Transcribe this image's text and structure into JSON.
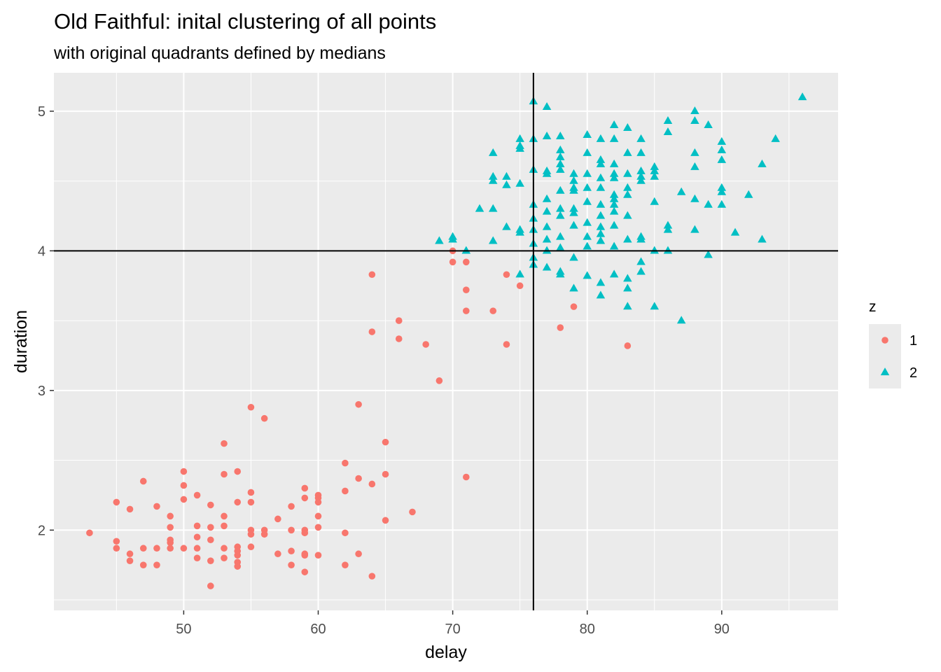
{
  "chart_data": {
    "type": "scatter",
    "title": "Old Faithful: inital clustering of all points",
    "subtitle": "with original quadrants defined by medians",
    "xlabel": "delay",
    "ylabel": "duration",
    "xlim": [
      40.35,
      98.65
    ],
    "ylim": [
      1.425,
      5.275
    ],
    "x_ticks": [
      50,
      60,
      70,
      80,
      90
    ],
    "y_ticks": [
      2,
      3,
      4,
      5
    ],
    "reference_lines": {
      "x": 76,
      "y": 4
    },
    "grid": true,
    "legend": {
      "title": "z",
      "position": "right"
    },
    "series": [
      {
        "name": "1",
        "shape": "circle",
        "color": "#F8766D",
        "points": [
          [
            43,
            1.98
          ],
          [
            45,
            2.2
          ],
          [
            45,
            1.92
          ],
          [
            45,
            1.87
          ],
          [
            46,
            2.15
          ],
          [
            46,
            1.83
          ],
          [
            46,
            1.78
          ],
          [
            47,
            2.35
          ],
          [
            47,
            1.87
          ],
          [
            47,
            1.75
          ],
          [
            48,
            2.17
          ],
          [
            48,
            1.87
          ],
          [
            48,
            1.75
          ],
          [
            49,
            2.1
          ],
          [
            49,
            2.02
          ],
          [
            49,
            1.93
          ],
          [
            49,
            1.91
          ],
          [
            49,
            1.87
          ],
          [
            50,
            2.42
          ],
          [
            50,
            2.32
          ],
          [
            50,
            2.22
          ],
          [
            50,
            1.87
          ],
          [
            51,
            2.25
          ],
          [
            51,
            2.03
          ],
          [
            51,
            1.95
          ],
          [
            51,
            1.87
          ],
          [
            51,
            1.8
          ],
          [
            52,
            2.18
          ],
          [
            52,
            2.02
          ],
          [
            52,
            1.93
          ],
          [
            52,
            1.78
          ],
          [
            52,
            1.6
          ],
          [
            53,
            2.62
          ],
          [
            53,
            2.4
          ],
          [
            53,
            2.1
          ],
          [
            53,
            2.03
          ],
          [
            53,
            1.87
          ],
          [
            53,
            1.8
          ],
          [
            54,
            2.42
          ],
          [
            54,
            2.2
          ],
          [
            54,
            1.88
          ],
          [
            54,
            1.85
          ],
          [
            54,
            1.82
          ],
          [
            54,
            1.77
          ],
          [
            54,
            1.74
          ],
          [
            55,
            2.88
          ],
          [
            55,
            2.27
          ],
          [
            55,
            2.2
          ],
          [
            55,
            2.0
          ],
          [
            55,
            1.97
          ],
          [
            55,
            1.88
          ],
          [
            56,
            2.8
          ],
          [
            56,
            2.0
          ],
          [
            56,
            1.97
          ],
          [
            57,
            2.08
          ],
          [
            57,
            1.83
          ],
          [
            58,
            2.17
          ],
          [
            58,
            2.0
          ],
          [
            58,
            1.85
          ],
          [
            58,
            1.75
          ],
          [
            59,
            2.3
          ],
          [
            59,
            2.23
          ],
          [
            59,
            2.0
          ],
          [
            59,
            1.98
          ],
          [
            59,
            1.83
          ],
          [
            59,
            1.82
          ],
          [
            59,
            1.7
          ],
          [
            60,
            2.25
          ],
          [
            60,
            2.23
          ],
          [
            60,
            2.2
          ],
          [
            60,
            2.1
          ],
          [
            60,
            2.02
          ],
          [
            60,
            1.82
          ],
          [
            62,
            2.48
          ],
          [
            62,
            2.28
          ],
          [
            62,
            1.98
          ],
          [
            62,
            1.75
          ],
          [
            63,
            2.9
          ],
          [
            63,
            2.37
          ],
          [
            63,
            1.83
          ],
          [
            64,
            3.83
          ],
          [
            64,
            3.42
          ],
          [
            64,
            2.33
          ],
          [
            64,
            1.67
          ],
          [
            65,
            2.63
          ],
          [
            65,
            2.4
          ],
          [
            65,
            2.07
          ],
          [
            66,
            3.5
          ],
          [
            66,
            3.37
          ],
          [
            67,
            2.13
          ],
          [
            68,
            3.33
          ],
          [
            69,
            3.07
          ],
          [
            70,
            4.0
          ],
          [
            70,
            3.92
          ],
          [
            71,
            3.92
          ],
          [
            71,
            3.72
          ],
          [
            71,
            3.57
          ],
          [
            71,
            2.38
          ],
          [
            73,
            3.57
          ],
          [
            74,
            3.83
          ],
          [
            74,
            3.33
          ],
          [
            75,
            3.75
          ],
          [
            78,
            3.45
          ],
          [
            79,
            3.6
          ],
          [
            83,
            3.32
          ]
        ]
      },
      {
        "name": "2",
        "shape": "triangle",
        "color": "#00BFC4",
        "points": [
          [
            69,
            4.07
          ],
          [
            70,
            4.1
          ],
          [
            70,
            4.08
          ],
          [
            71,
            4.0
          ],
          [
            72,
            4.3
          ],
          [
            73,
            4.7
          ],
          [
            73,
            4.53
          ],
          [
            73,
            4.5
          ],
          [
            73,
            4.3
          ],
          [
            73,
            4.07
          ],
          [
            74,
            4.53
          ],
          [
            74,
            4.47
          ],
          [
            74,
            4.17
          ],
          [
            75,
            4.8
          ],
          [
            75,
            4.75
          ],
          [
            75,
            4.73
          ],
          [
            75,
            4.48
          ],
          [
            75,
            4.15
          ],
          [
            75,
            4.13
          ],
          [
            75,
            3.83
          ],
          [
            76,
            5.07
          ],
          [
            76,
            4.8
          ],
          [
            76,
            4.58
          ],
          [
            76,
            4.33
          ],
          [
            76,
            4.23
          ],
          [
            76,
            4.15
          ],
          [
            76,
            4.05
          ],
          [
            76,
            3.95
          ],
          [
            76,
            3.9
          ],
          [
            77,
            5.03
          ],
          [
            77,
            4.82
          ],
          [
            77,
            4.57
          ],
          [
            77,
            4.55
          ],
          [
            77,
            4.37
          ],
          [
            77,
            4.28
          ],
          [
            77,
            4.17
          ],
          [
            77,
            4.08
          ],
          [
            77,
            4.0
          ],
          [
            77,
            3.88
          ],
          [
            78,
            4.82
          ],
          [
            78,
            4.72
          ],
          [
            78,
            4.67
          ],
          [
            78,
            4.62
          ],
          [
            78,
            4.58
          ],
          [
            78,
            4.43
          ],
          [
            78,
            4.3
          ],
          [
            78,
            4.25
          ],
          [
            78,
            4.1
          ],
          [
            78,
            4.02
          ],
          [
            78,
            3.85
          ],
          [
            78,
            3.83
          ],
          [
            79,
            4.55
          ],
          [
            79,
            4.5
          ],
          [
            79,
            4.45
          ],
          [
            79,
            4.43
          ],
          [
            79,
            4.3
          ],
          [
            79,
            4.27
          ],
          [
            79,
            4.18
          ],
          [
            79,
            3.95
          ],
          [
            79,
            3.73
          ],
          [
            80,
            4.83
          ],
          [
            80,
            4.7
          ],
          [
            80,
            4.55
          ],
          [
            80,
            4.45
          ],
          [
            80,
            4.35
          ],
          [
            80,
            4.2
          ],
          [
            80,
            4.1
          ],
          [
            80,
            4.03
          ],
          [
            80,
            3.82
          ],
          [
            81,
            4.8
          ],
          [
            81,
            4.65
          ],
          [
            81,
            4.62
          ],
          [
            81,
            4.52
          ],
          [
            81,
            4.45
          ],
          [
            81,
            4.33
          ],
          [
            81,
            4.25
          ],
          [
            81,
            4.17
          ],
          [
            81,
            4.12
          ],
          [
            81,
            4.07
          ],
          [
            81,
            3.77
          ],
          [
            81,
            3.68
          ],
          [
            82,
            4.9
          ],
          [
            82,
            4.8
          ],
          [
            82,
            4.62
          ],
          [
            82,
            4.55
          ],
          [
            82,
            4.52
          ],
          [
            82,
            4.4
          ],
          [
            82,
            4.37
          ],
          [
            82,
            4.33
          ],
          [
            82,
            4.28
          ],
          [
            82,
            4.18
          ],
          [
            82,
            4.03
          ],
          [
            82,
            3.83
          ],
          [
            83,
            4.88
          ],
          [
            83,
            4.7
          ],
          [
            83,
            4.55
          ],
          [
            83,
            4.45
          ],
          [
            83,
            4.4
          ],
          [
            83,
            4.25
          ],
          [
            83,
            4.08
          ],
          [
            83,
            3.8
          ],
          [
            83,
            3.73
          ],
          [
            83,
            3.6
          ],
          [
            84,
            4.8
          ],
          [
            84,
            4.7
          ],
          [
            84,
            4.57
          ],
          [
            84,
            4.53
          ],
          [
            84,
            4.5
          ],
          [
            84,
            4.1
          ],
          [
            84,
            4.08
          ],
          [
            84,
            3.92
          ],
          [
            84,
            3.85
          ],
          [
            85,
            4.6
          ],
          [
            85,
            4.57
          ],
          [
            85,
            4.53
          ],
          [
            85,
            4.35
          ],
          [
            85,
            4.0
          ],
          [
            85,
            3.6
          ],
          [
            86,
            4.93
          ],
          [
            86,
            4.85
          ],
          [
            86,
            4.18
          ],
          [
            86,
            4.15
          ],
          [
            86,
            4.0
          ],
          [
            87,
            4.42
          ],
          [
            87,
            3.5
          ],
          [
            88,
            5.0
          ],
          [
            88,
            4.93
          ],
          [
            88,
            4.7
          ],
          [
            88,
            4.6
          ],
          [
            88,
            4.37
          ],
          [
            88,
            4.15
          ],
          [
            89,
            4.9
          ],
          [
            89,
            4.33
          ],
          [
            89,
            3.97
          ],
          [
            90,
            4.78
          ],
          [
            90,
            4.72
          ],
          [
            90,
            4.65
          ],
          [
            90,
            4.45
          ],
          [
            90,
            4.42
          ],
          [
            90,
            4.33
          ],
          [
            91,
            4.13
          ],
          [
            92,
            4.4
          ],
          [
            93,
            4.62
          ],
          [
            93,
            4.08
          ],
          [
            94,
            4.8
          ],
          [
            96,
            5.1
          ]
        ]
      }
    ]
  }
}
